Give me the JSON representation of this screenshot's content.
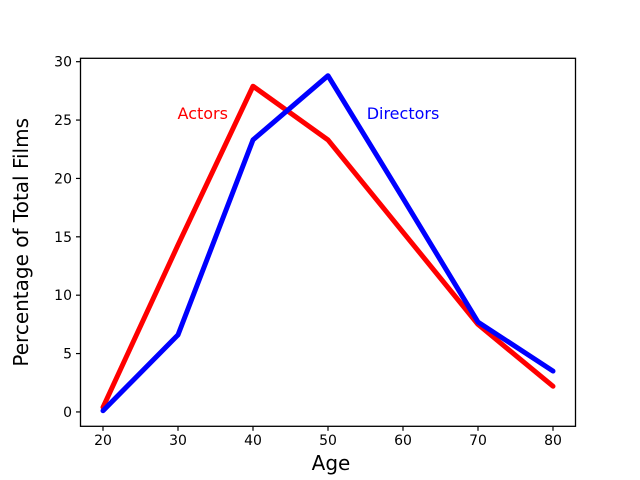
{
  "figure": {
    "background": "#ffffff",
    "axis_color": "#000000"
  },
  "chart_data": {
    "type": "line",
    "title": "",
    "xlabel": "Age",
    "ylabel": "Percentage of Total Films",
    "x": [
      20,
      30,
      40,
      50,
      60,
      70,
      80
    ],
    "series": [
      {
        "name": "Actors",
        "color": "#ff0000",
        "values": [
          0.4,
          14.3,
          27.9,
          23.3,
          15.4,
          7.5,
          2.2
        ]
      },
      {
        "name": "Directors",
        "color": "#0000ff",
        "values": [
          0.1,
          6.6,
          23.3,
          28.8,
          18.3,
          7.7,
          3.5
        ]
      }
    ],
    "annotations": [
      {
        "text": "Actors",
        "color": "#ff0000",
        "x": 33.3,
        "y": 25.6
      },
      {
        "text": "Directors",
        "color": "#0000ff",
        "x": 60.0,
        "y": 25.6
      }
    ],
    "xticks": [
      20,
      30,
      40,
      50,
      60,
      70,
      80
    ],
    "yticks": [
      0,
      5,
      10,
      15,
      20,
      25,
      30
    ],
    "xlim": [
      17,
      83
    ],
    "ylim": [
      -1.23,
      30.29
    ],
    "grid": false,
    "legend_position": "none"
  }
}
